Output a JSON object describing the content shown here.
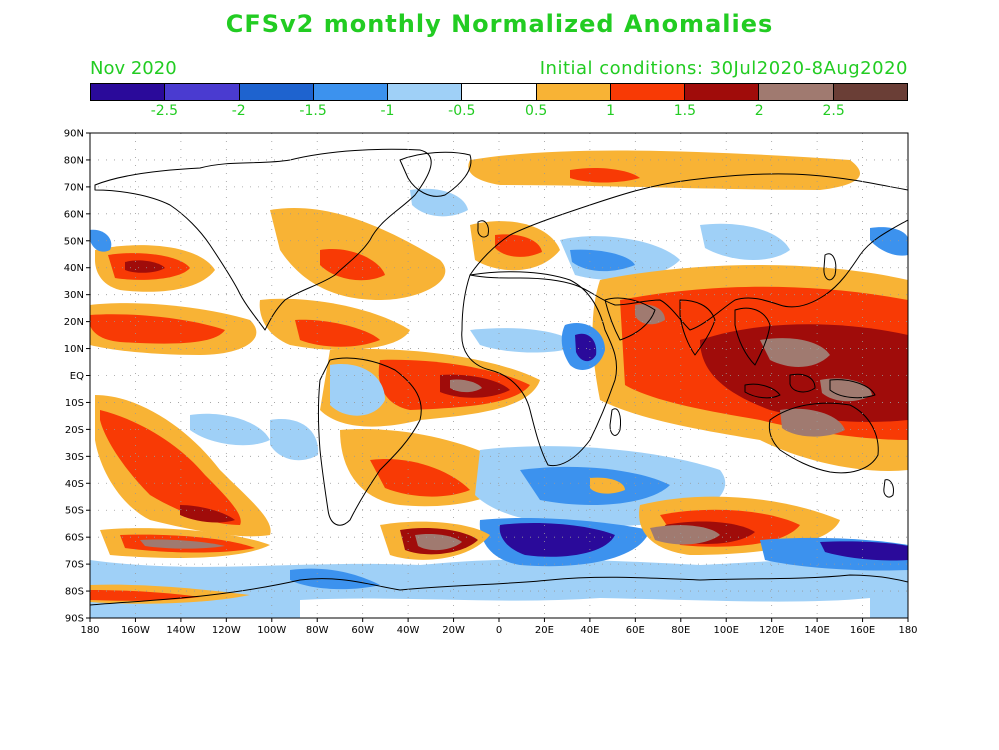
{
  "title": "CFSv2 monthly Normalized Anomalies",
  "month_label": "Nov 2020",
  "initial_conditions": "Initial conditions: 30Jul2020-8Aug2020",
  "colorbar": {
    "colors": [
      "#2a0a9a",
      "#4a3bd0",
      "#1e63cf",
      "#3c92ee",
      "#9fd0f7",
      "#ffffff",
      "#f8b335",
      "#f83a05",
      "#a00c0a",
      "#a07a70",
      "#6a3e36"
    ],
    "labels": [
      "-2.5",
      "-2",
      "-1.5",
      "-1",
      "-0.5",
      "0.5",
      "1",
      "1.5",
      "2",
      "2.5"
    ]
  },
  "axes": {
    "lat_labels": [
      "90N",
      "80N",
      "70N",
      "60N",
      "50N",
      "40N",
      "30N",
      "20N",
      "10N",
      "EQ",
      "10S",
      "20S",
      "30S",
      "40S",
      "50S",
      "60S",
      "70S",
      "80S",
      "90S"
    ],
    "lon_labels": [
      "180",
      "160W",
      "140W",
      "120W",
      "100W",
      "80W",
      "60W",
      "40W",
      "20W",
      "0",
      "20E",
      "40E",
      "60E",
      "80E",
      "100E",
      "120E",
      "140E",
      "160E",
      "180"
    ]
  }
}
